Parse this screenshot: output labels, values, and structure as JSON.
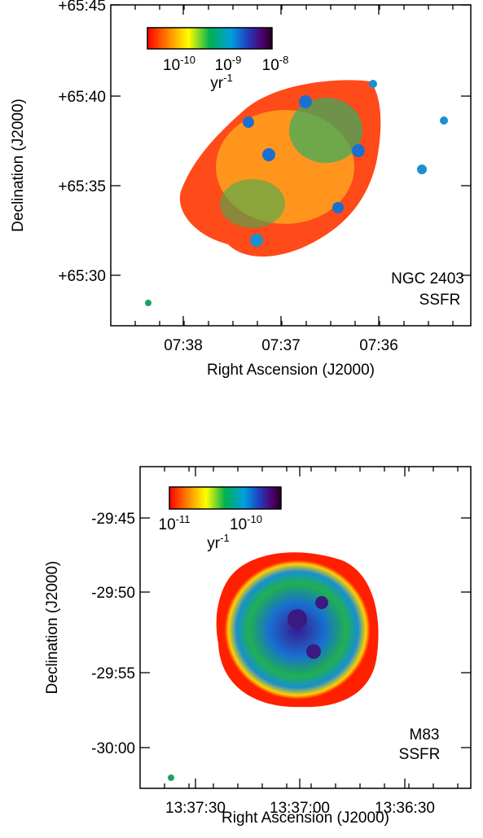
{
  "panels": [
    {
      "y_axis_label": "Declination (J2000)",
      "x_axis_label": "Right Ascension (J2000)",
      "y_tick_labels": [
        "+65:45",
        "+65:40",
        "+65:35",
        "+65:30"
      ],
      "x_tick_labels": [
        "07:38",
        "07:37",
        "07:36"
      ],
      "colorbar_labels": [
        {
          "base": "10",
          "exp": "-10"
        },
        {
          "base": "10",
          "exp": "-9"
        },
        {
          "base": "10",
          "exp": "-8"
        }
      ],
      "colorbar_unit": {
        "base": "yr",
        "exp": "-1"
      },
      "annotation": [
        "NGC 2403",
        "SSFR"
      ]
    },
    {
      "y_axis_label": "Declination (J2000)",
      "x_axis_label": "Right Ascension (J2000)",
      "y_tick_labels": [
        "-29:45",
        "-29:50",
        "-29:55",
        "-30:00"
      ],
      "x_tick_labels": [
        "13:37:30",
        "13:37:00",
        "13:36:30"
      ],
      "colorbar_labels": [
        {
          "base": "10",
          "exp": "-11"
        },
        {
          "base": "10",
          "exp": "-10"
        }
      ],
      "colorbar_unit": {
        "base": "yr",
        "exp": "-1"
      },
      "annotation": [
        "M83",
        "SSFR"
      ]
    }
  ]
}
